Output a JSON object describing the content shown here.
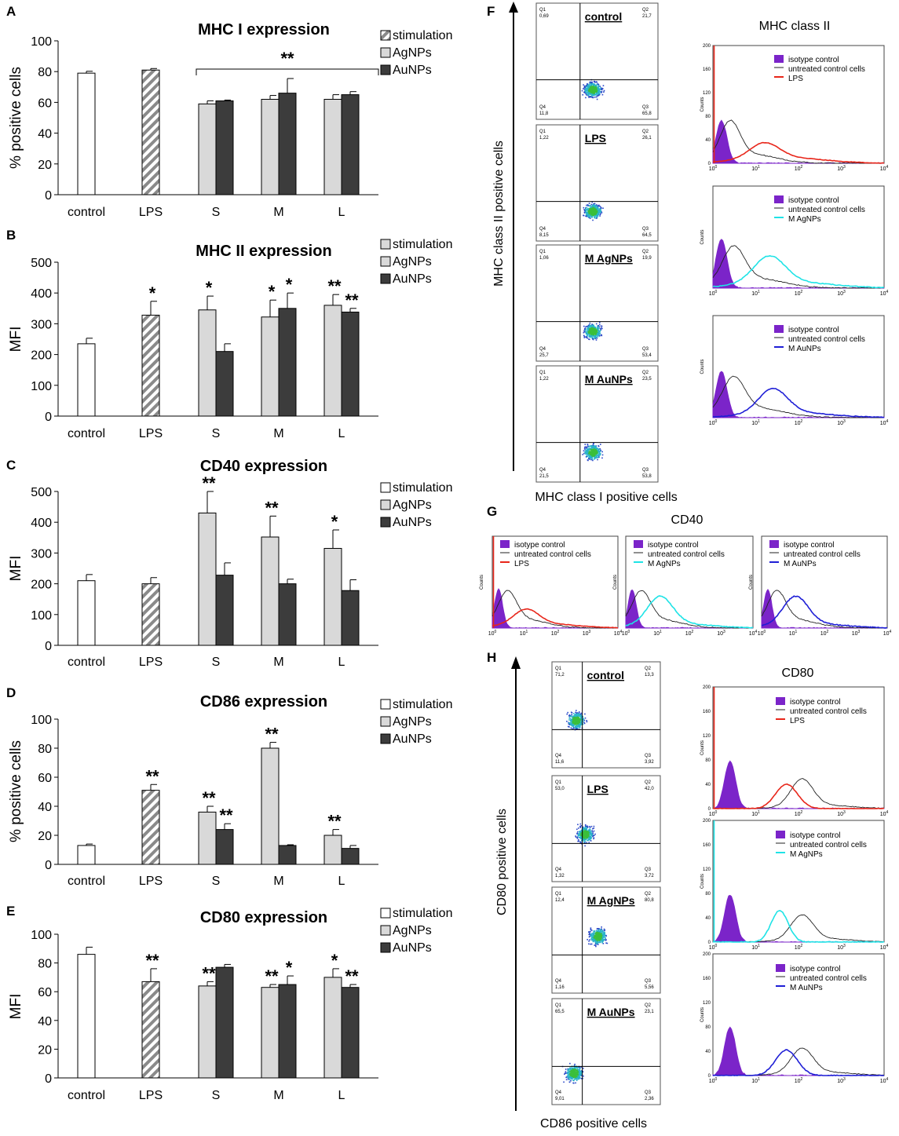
{
  "colors": {
    "stimulation": "#ffffff",
    "agnps": "#d9d9d9",
    "aunps": "#3c3c3c",
    "lps": "#e8261a",
    "m_agnps": "#1fe3e6",
    "m_aunps": "#1f1fd6",
    "isotype": "#7b24c9",
    "untreated": "#222222",
    "dot": "#2a48c8"
  },
  "chart_data": [
    {
      "panel": "A",
      "type": "bar",
      "title": "MHC I expression",
      "ylabel": "% positive cells",
      "ylim": [
        0,
        100
      ],
      "yticks": [
        0,
        20,
        40,
        60,
        80,
        100
      ],
      "categories": [
        "control",
        "LPS",
        "S",
        "M",
        "L"
      ],
      "legend": [
        "stimulation",
        "AgNPs",
        "AuNPs"
      ],
      "legend_stim_style": "hatched",
      "bracket_label": "**",
      "bars": [
        {
          "cat": 0,
          "series": "stimulation",
          "value": 79,
          "err": 1.2,
          "sig": ""
        },
        {
          "cat": 1,
          "series": "lps",
          "value": 81,
          "err": 1,
          "sig": ""
        },
        {
          "cat": 2,
          "series": "AgNPs",
          "value": 59,
          "err": 2,
          "sig": ""
        },
        {
          "cat": 2,
          "series": "AuNPs",
          "value": 61,
          "err": 0.5,
          "sig": ""
        },
        {
          "cat": 3,
          "series": "AgNPs",
          "value": 62,
          "err": 2.5,
          "sig": ""
        },
        {
          "cat": 3,
          "series": "AuNPs",
          "value": 66,
          "err": 9.5,
          "sig": ""
        },
        {
          "cat": 4,
          "series": "AgNPs",
          "value": 62,
          "err": 3,
          "sig": ""
        },
        {
          "cat": 4,
          "series": "AuNPs",
          "value": 65,
          "err": 2,
          "sig": ""
        }
      ]
    },
    {
      "panel": "B",
      "type": "bar",
      "title": "MHC II expression",
      "ylabel": "MFI",
      "ylim": [
        0,
        500
      ],
      "yticks": [
        0,
        100,
        200,
        300,
        400,
        500
      ],
      "categories": [
        "control",
        "LPS",
        "S",
        "M",
        "L"
      ],
      "legend": [
        "stimulation",
        "AgNPs",
        "AuNPs"
      ],
      "legend_stim_style": "grey",
      "bars": [
        {
          "cat": 0,
          "series": "stimulation",
          "value": 235,
          "err": 18,
          "sig": ""
        },
        {
          "cat": 1,
          "series": "lps",
          "value": 328,
          "err": 45,
          "sig": "*"
        },
        {
          "cat": 2,
          "series": "AgNPs",
          "value": 345,
          "err": 45,
          "sig": "*"
        },
        {
          "cat": 2,
          "series": "AuNPs",
          "value": 210,
          "err": 25,
          "sig": ""
        },
        {
          "cat": 3,
          "series": "AgNPs",
          "value": 322,
          "err": 55,
          "sig": "*"
        },
        {
          "cat": 3,
          "series": "AuNPs",
          "value": 350,
          "err": 50,
          "sig": "*"
        },
        {
          "cat": 4,
          "series": "AgNPs",
          "value": 360,
          "err": 35,
          "sig": "**"
        },
        {
          "cat": 4,
          "series": "AuNPs",
          "value": 338,
          "err": 12,
          "sig": "**"
        }
      ]
    },
    {
      "panel": "C",
      "type": "bar",
      "title": "CD40 expression",
      "ylabel": "MFI",
      "ylim": [
        0,
        500
      ],
      "yticks": [
        0,
        100,
        200,
        300,
        400,
        500
      ],
      "categories": [
        "control",
        "LPS",
        "S",
        "M",
        "L"
      ],
      "legend": [
        "stimulation",
        "AgNPs",
        "AuNPs"
      ],
      "legend_stim_style": "white",
      "bars": [
        {
          "cat": 0,
          "series": "stimulation",
          "value": 210,
          "err": 20,
          "sig": ""
        },
        {
          "cat": 1,
          "series": "lps",
          "value": 200,
          "err": 20,
          "sig": ""
        },
        {
          "cat": 2,
          "series": "AgNPs",
          "value": 430,
          "err": 70,
          "sig": "**"
        },
        {
          "cat": 2,
          "series": "AuNPs",
          "value": 228,
          "err": 40,
          "sig": ""
        },
        {
          "cat": 3,
          "series": "AgNPs",
          "value": 352,
          "err": 68,
          "sig": "**"
        },
        {
          "cat": 3,
          "series": "AuNPs",
          "value": 200,
          "err": 15,
          "sig": ""
        },
        {
          "cat": 4,
          "series": "AgNPs",
          "value": 315,
          "err": 60,
          "sig": "*"
        },
        {
          "cat": 4,
          "series": "AuNPs",
          "value": 178,
          "err": 35,
          "sig": ""
        }
      ]
    },
    {
      "panel": "D",
      "type": "bar",
      "title": "CD86 expression",
      "ylabel": "% positive cells",
      "ylim": [
        0,
        100
      ],
      "yticks": [
        0,
        20,
        40,
        60,
        80,
        100
      ],
      "categories": [
        "control",
        "LPS",
        "S",
        "M",
        "L"
      ],
      "legend": [
        "stimulation",
        "AgNPs",
        "AuNPs"
      ],
      "legend_stim_style": "white",
      "bars": [
        {
          "cat": 0,
          "series": "stimulation",
          "value": 13,
          "err": 1,
          "sig": ""
        },
        {
          "cat": 1,
          "series": "lps",
          "value": 51,
          "err": 4,
          "sig": "**"
        },
        {
          "cat": 2,
          "series": "AgNPs",
          "value": 36,
          "err": 4,
          "sig": "**"
        },
        {
          "cat": 2,
          "series": "AuNPs",
          "value": 24,
          "err": 4,
          "sig": "**"
        },
        {
          "cat": 3,
          "series": "AgNPs",
          "value": 80,
          "err": 4,
          "sig": "**"
        },
        {
          "cat": 3,
          "series": "AuNPs",
          "value": 13,
          "err": 0.5,
          "sig": ""
        },
        {
          "cat": 4,
          "series": "AgNPs",
          "value": 20,
          "err": 4,
          "sig": "**"
        },
        {
          "cat": 4,
          "series": "AuNPs",
          "value": 11,
          "err": 2,
          "sig": ""
        }
      ]
    },
    {
      "panel": "E",
      "type": "bar",
      "title": "CD80 expression",
      "ylabel": "MFI",
      "ylim": [
        0,
        100
      ],
      "yticks": [
        0,
        20,
        40,
        60,
        80,
        100
      ],
      "categories": [
        "control",
        "LPS",
        "S",
        "M",
        "L"
      ],
      "legend": [
        "stimulation",
        "AgNPs",
        "AuNPs"
      ],
      "legend_stim_style": "white",
      "bars": [
        {
          "cat": 0,
          "series": "stimulation",
          "value": 86,
          "err": 5,
          "sig": ""
        },
        {
          "cat": 1,
          "series": "lps",
          "value": 67,
          "err": 9,
          "sig": "**"
        },
        {
          "cat": 2,
          "series": "AgNPs",
          "value": 64,
          "err": 3,
          "sig": "**"
        },
        {
          "cat": 2,
          "series": "AuNPs",
          "value": 77,
          "err": 2,
          "sig": ""
        },
        {
          "cat": 3,
          "series": "AgNPs",
          "value": 63,
          "err": 2,
          "sig": "**"
        },
        {
          "cat": 3,
          "series": "AuNPs",
          "value": 65,
          "err": 6,
          "sig": "*"
        },
        {
          "cat": 4,
          "series": "AgNPs",
          "value": 70,
          "err": 6,
          "sig": "*"
        },
        {
          "cat": 4,
          "series": "AuNPs",
          "value": 63,
          "err": 2,
          "sig": "**"
        }
      ]
    }
  ],
  "flow_f": {
    "letter": "F",
    "y_axis_label": "MHC class II positive cells",
    "x_axis_label": "MHC class I positive cells",
    "hist_title": "MHC class II",
    "dotplots": [
      {
        "label": "control",
        "q1": "0,69",
        "q2": "21,7",
        "q3": "65,8",
        "q4": "11,8"
      },
      {
        "label": "LPS",
        "q1": "1,22",
        "q2": "26,1",
        "q3": "64,5",
        "q4": "8,15"
      },
      {
        "label": "M AgNPs",
        "q1": "1,06",
        "q2": "19,9",
        "q3": "53,4",
        "q4": "25,7"
      },
      {
        "label": "M AuNPs",
        "q1": "1,22",
        "q2": "23,5",
        "q3": "53,8",
        "q4": "21,5"
      }
    ],
    "histograms": [
      {
        "isotype": "isotype control",
        "untreated": "untreated control cells",
        "treatment": "LPS",
        "color": "#e8261a"
      },
      {
        "isotype": "isotype control",
        "untreated": "untreated control cells",
        "treatment": "M AgNPs",
        "color": "#1fe3e6"
      },
      {
        "isotype": "isotype control",
        "untreated": "untreated control cells",
        "treatment": "M AuNPs",
        "color": "#1f1fd6"
      }
    ]
  },
  "flow_g": {
    "letter": "G",
    "title": "CD40",
    "histograms": [
      {
        "isotype": "isotype control",
        "untreated": "untreated control cells",
        "treatment": "LPS",
        "color": "#e8261a"
      },
      {
        "isotype": "isotype control",
        "untreated": "untreated control cells",
        "treatment": "M AgNPs",
        "color": "#1fe3e6"
      },
      {
        "isotype": "isotype control",
        "untreated": "untreated control cells",
        "treatment": "M AuNPs",
        "color": "#1f1fd6"
      }
    ]
  },
  "flow_h": {
    "letter": "H",
    "y_axis_label": "CD80 positive cells",
    "x_axis_label": "CD86 positive cells",
    "hist_title": "CD80",
    "dotplots": [
      {
        "label": "control",
        "q1": "71,2",
        "q2": "13,3",
        "q3": "3,92",
        "q4": "11,6"
      },
      {
        "label": "LPS",
        "q1": "53,0",
        "q2": "42,0",
        "q3": "3,72",
        "q4": "1,32"
      },
      {
        "label": "M AgNPs",
        "q1": "12,4",
        "q2": "80,8",
        "q3": "5,56",
        "q4": "1,16"
      },
      {
        "label": "M AuNPs",
        "q1": "65,5",
        "q2": "23,1",
        "q3": "2,36",
        "q4": "9,01"
      }
    ],
    "histograms": [
      {
        "isotype": "isotype control",
        "untreated": "untreated control cells",
        "treatment": "LPS",
        "color": "#e8261a"
      },
      {
        "isotype": "isotype control",
        "untreated": "untreated control cells",
        "treatment": "M AgNPs",
        "color": "#1fe3e6"
      },
      {
        "isotype": "isotype control",
        "untreated": "untreated control cells",
        "treatment": "M AuNPs",
        "color": "#1f1fd6"
      }
    ]
  },
  "axis_text": {
    "counts": "Counts",
    "ticks_200": [
      "0",
      "40",
      "80",
      "120",
      "160",
      "200"
    ],
    "decades": [
      "0",
      "1",
      "2",
      "3",
      "4"
    ]
  }
}
